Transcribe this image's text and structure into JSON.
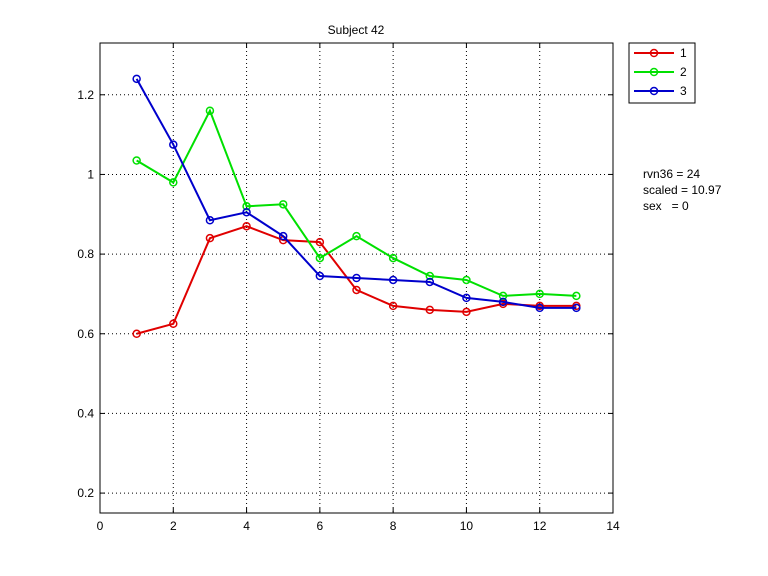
{
  "chart_data": {
    "type": "line",
    "title": "Subject 42",
    "xlabel": "",
    "ylabel": "",
    "xlim": [
      0,
      14
    ],
    "ylim": [
      0.15,
      1.33
    ],
    "xticks": [
      0,
      2,
      4,
      6,
      8,
      10,
      12,
      14
    ],
    "yticks": [
      0.2,
      0.4,
      0.6,
      0.8,
      1,
      1.2
    ],
    "xtick_labels": [
      "0",
      "2",
      "4",
      "6",
      "8",
      "10",
      "12",
      "14"
    ],
    "ytick_labels": [
      "0.2",
      "0.4",
      "0.6",
      "0.8",
      "1",
      "1.2"
    ],
    "grid": true,
    "legend_position": "outside-top-right",
    "x": [
      1,
      2,
      3,
      4,
      5,
      6,
      7,
      8,
      9,
      10,
      11,
      12,
      13
    ],
    "series": [
      {
        "name": "1",
        "color": "#e00000",
        "values": [
          0.6,
          0.625,
          0.84,
          0.87,
          0.835,
          0.83,
          0.71,
          0.67,
          0.66,
          0.655,
          0.675,
          0.67,
          0.67
        ]
      },
      {
        "name": "2",
        "color": "#00e000",
        "values": [
          1.035,
          0.98,
          1.16,
          0.92,
          0.925,
          0.79,
          0.845,
          0.79,
          0.745,
          0.735,
          0.695,
          0.7,
          0.695
        ]
      },
      {
        "name": "3",
        "color": "#0000cc",
        "values": [
          1.24,
          1.075,
          0.885,
          0.905,
          0.845,
          0.745,
          0.74,
          0.735,
          0.73,
          0.69,
          0.68,
          0.665,
          0.665
        ]
      }
    ],
    "annotations": [
      "rvn36 = 24",
      "scaled = 10.97",
      "sex   = 0"
    ]
  }
}
